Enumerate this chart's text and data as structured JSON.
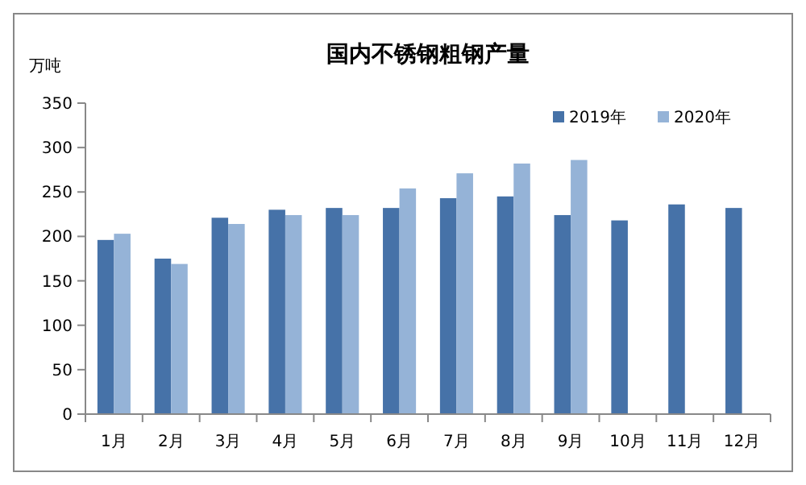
{
  "chart_data": {
    "type": "bar",
    "title": "国内不锈钢粗钢产量",
    "ylabel": "万吨",
    "categories": [
      "1月",
      "2月",
      "3月",
      "4月",
      "5月",
      "6月",
      "7月",
      "8月",
      "9月",
      "10月",
      "11月",
      "12月"
    ],
    "series": [
      {
        "name": "2019年",
        "color": "#4672a8",
        "values": [
          196,
          175,
          221,
          230,
          232,
          232,
          243,
          245,
          224,
          218,
          236,
          232
        ]
      },
      {
        "name": "2020年",
        "color": "#95b3d7",
        "values": [
          203,
          169,
          214,
          224,
          224,
          254,
          271,
          282,
          286,
          null,
          null,
          null
        ]
      }
    ],
    "ylim": [
      0,
      350
    ],
    "yticks": [
      0,
      50,
      100,
      150,
      200,
      250,
      300,
      350
    ],
    "grid": false,
    "legend": "top right"
  }
}
